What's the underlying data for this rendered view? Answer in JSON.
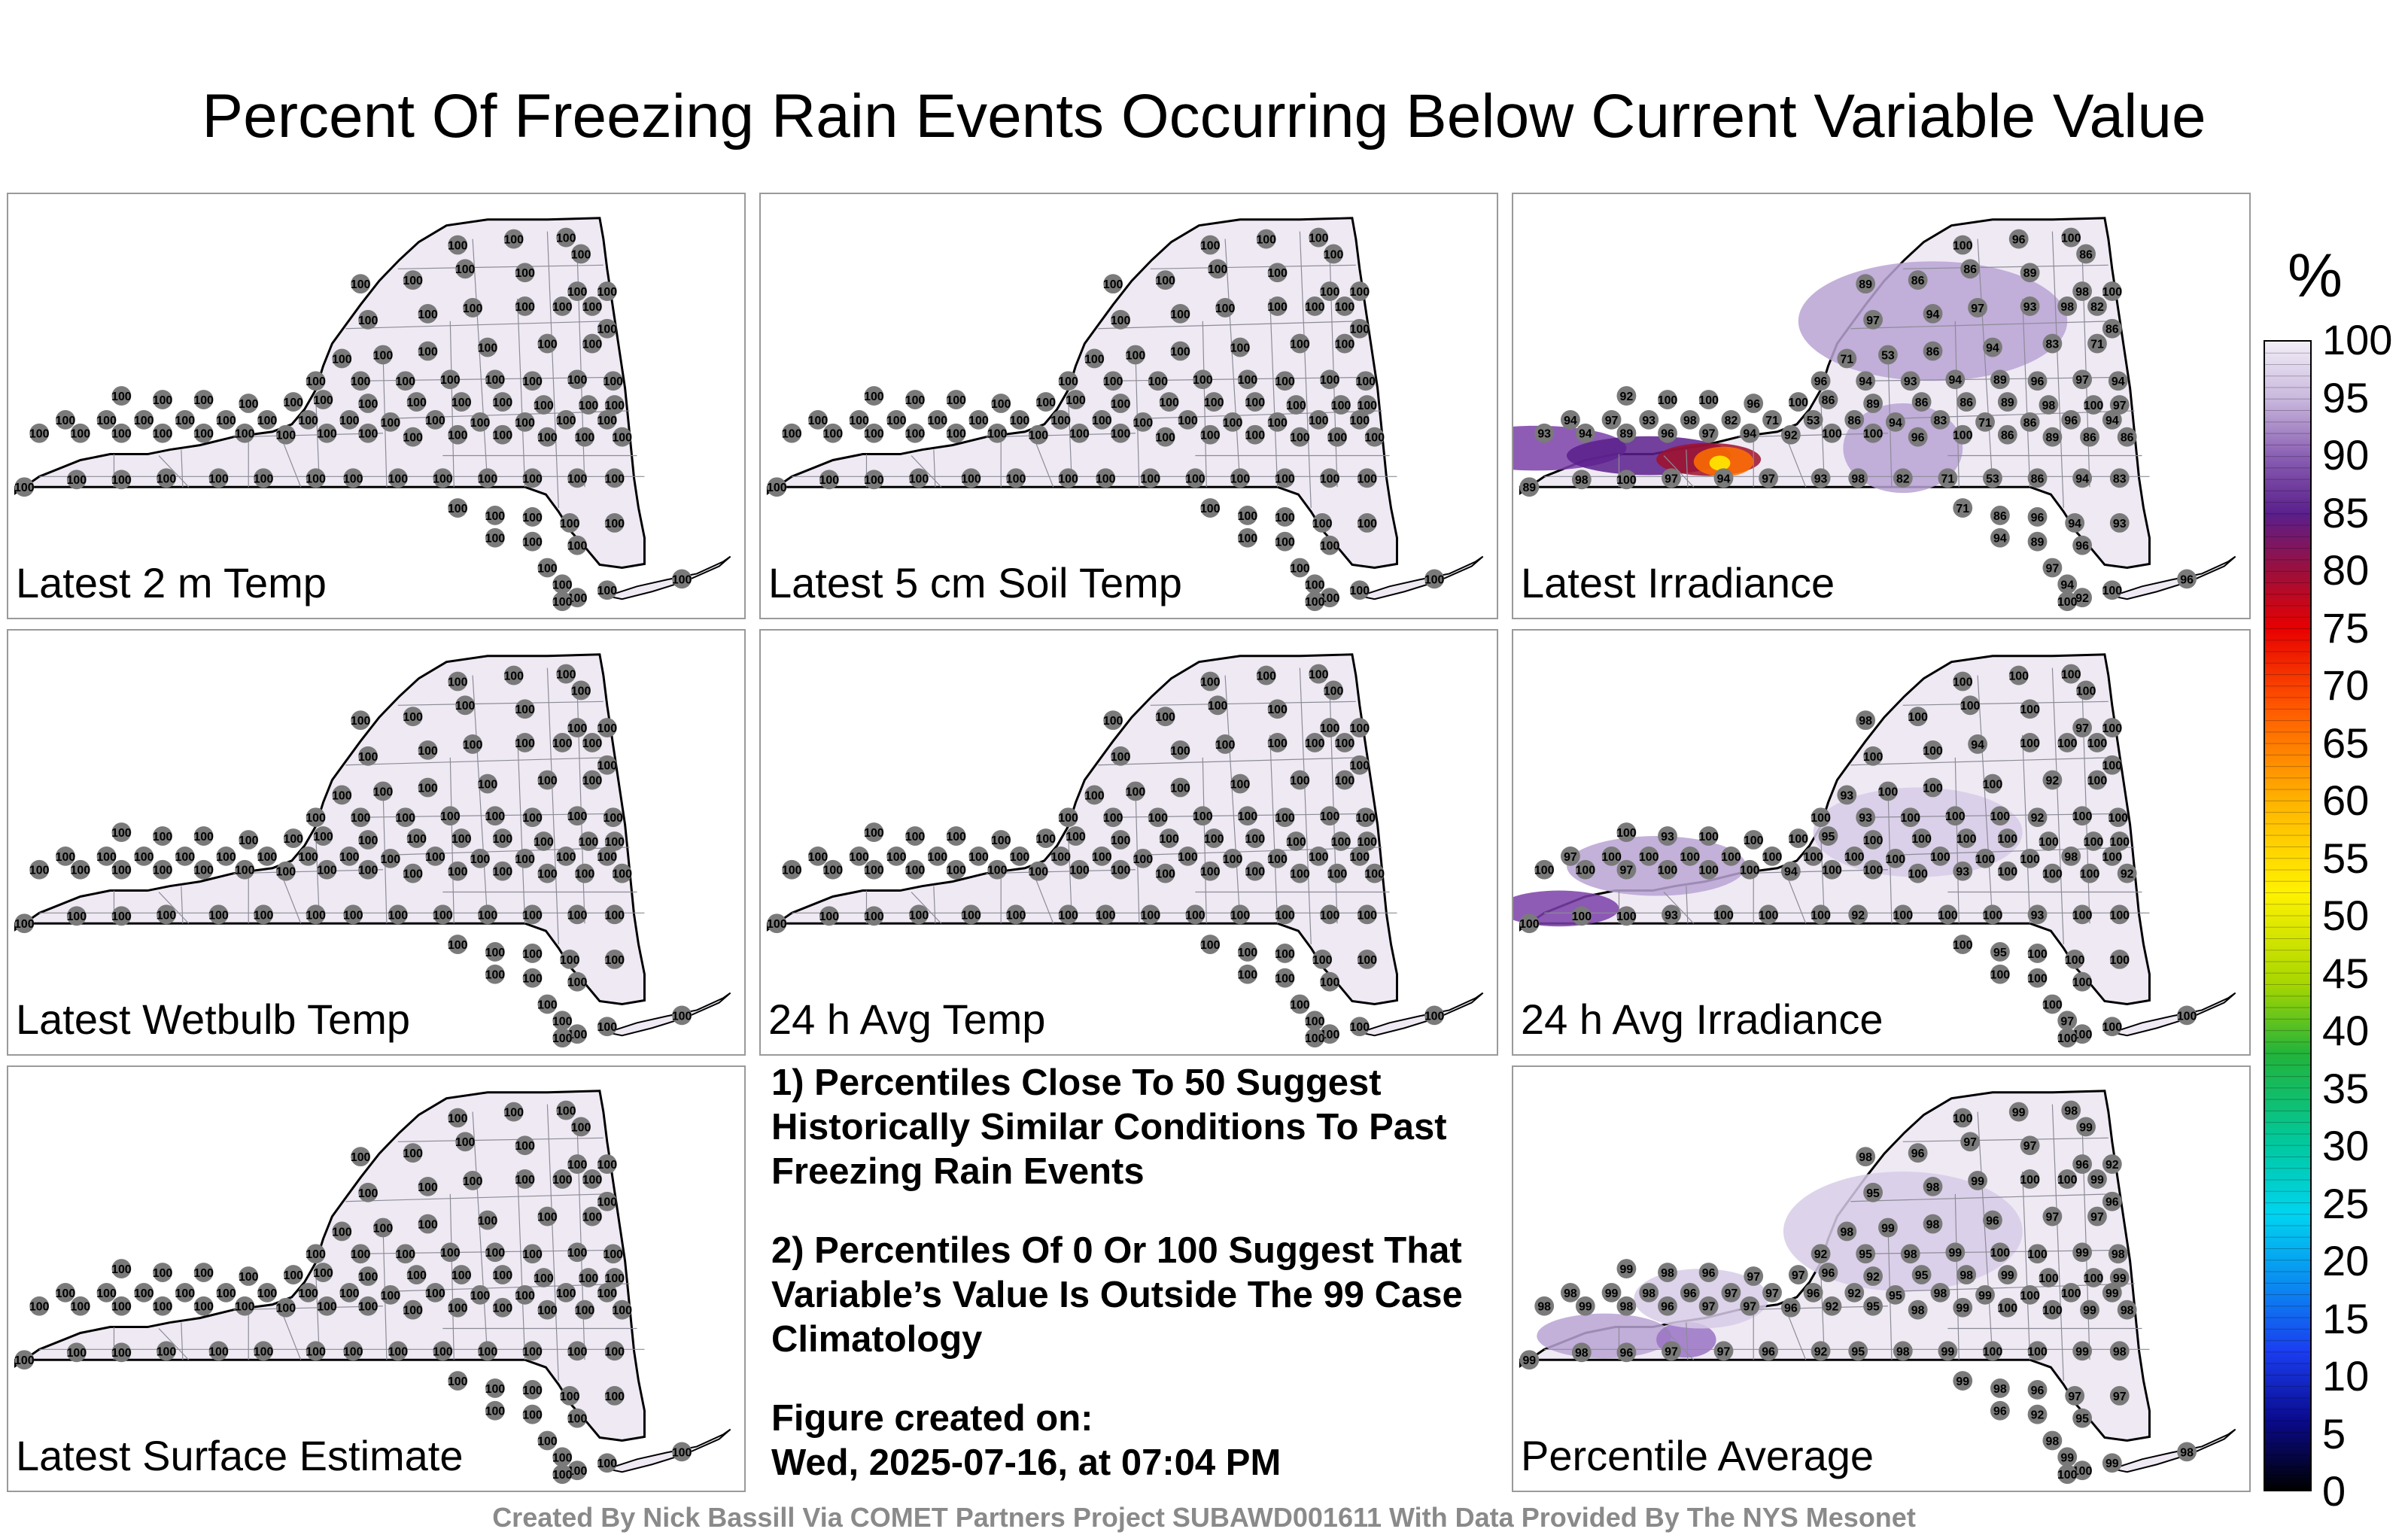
{
  "title": "Percent Of Freezing Rain Events Occurring Below Current Variable Value",
  "panels": [
    {
      "label": "Latest 2 m Temp"
    },
    {
      "label": "Latest 5 cm Soil Temp"
    },
    {
      "label": "Latest Irradiance"
    },
    {
      "label": "Latest Wetbulb Temp"
    },
    {
      "label": "24 h Avg Temp"
    },
    {
      "label": "24 h Avg Irradiance"
    },
    {
      "label": "Latest Surface Estimate"
    },
    {
      "label": "Percentile Average"
    }
  ],
  "notes": {
    "note1": "1) Percentiles Close To 50 Suggest Historically Similar Conditions To Past Freezing Rain Events",
    "note2": "2) Percentiles Of 0 Or 100 Suggest That Variable’s Value Is Outside The 99 Case Climatology",
    "created_label": "Figure created on:",
    "created_date": "Wed, 2025-07-16, at 07:04 PM"
  },
  "legend": {
    "unit": "%",
    "ticks": [
      "100",
      "95",
      "90",
      "85",
      "80",
      "75",
      "70",
      "65",
      "60",
      "55",
      "50",
      "45",
      "40",
      "35",
      "30",
      "25",
      "20",
      "15",
      "10",
      "5",
      "0"
    ]
  },
  "credit": "Created By Nick Bassill Via COMET Partners Project SUBAWD001611 With Data Provided By The NYS Mesonet",
  "map_colors": {
    "fill": "#efe9f4",
    "outline": "#000000",
    "county_line": "#8c8c96",
    "station_dot": "#7a7a7a"
  },
  "stations_panel_default": {
    "value": "100"
  },
  "stations_irradiance": {
    "values": [
      "100",
      "96",
      "100",
      "86",
      "89",
      "86",
      "86",
      "89",
      "98",
      "100",
      "97",
      "94",
      "97",
      "93",
      "98",
      "82",
      "71",
      "53",
      "86",
      "94",
      "83",
      "71",
      "86",
      "96",
      "94",
      "93",
      "94",
      "89",
      "96",
      "97",
      "94",
      "92",
      "100"
    ]
  },
  "stations_avg_irradiance": {
    "values": [
      "100",
      "98",
      "97",
      "94",
      "93",
      "92",
      "93",
      "92",
      "93",
      "95",
      "100",
      "97",
      "100"
    ]
  },
  "stations_percentile_average": {
    "values": [
      "100",
      "99",
      "98",
      "99",
      "98",
      "96",
      "97",
      "97",
      "96",
      "92",
      "95",
      "98",
      "99",
      "100"
    ]
  }
}
